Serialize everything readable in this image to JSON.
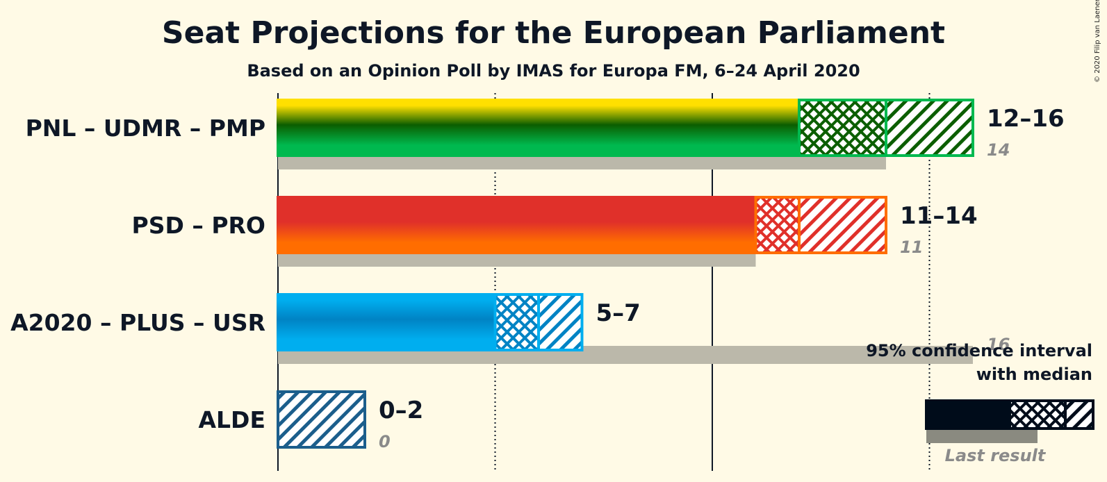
{
  "title": "Seat Projections for the European Parliament",
  "subtitle": "Based on an Opinion Poll by IMAS for Europa FM, 6–24 April 2020",
  "copyright": "© 2020 Filip van Laenen",
  "legend": {
    "line1": "95% confidence interval",
    "line2": "with median",
    "last_result": "Last result"
  },
  "chart_data": {
    "type": "bar",
    "orientation": "horizontal",
    "title": "Seat Projections for the European Parliament",
    "subtitle": "Based on an Opinion Poll by IMAS for Europa FM, 6–24 April 2020",
    "xlim": [
      0,
      16
    ],
    "gridlines": [
      5,
      10,
      15
    ],
    "parties": [
      {
        "name": "PNL – UDMR – PMP",
        "low": 12,
        "median": 14,
        "high": 16,
        "last": 14,
        "range_label": "12–16",
        "last_label": "14",
        "colors": [
          "#ffe000",
          "#0b5e00",
          "#00b94f"
        ]
      },
      {
        "name": "PSD – PRO",
        "low": 11,
        "median": 12,
        "high": 14,
        "last": 11,
        "range_label": "11–14",
        "last_label": "11",
        "colors": [
          "#e0302a",
          "#e0302a",
          "#ff6d00"
        ]
      },
      {
        "name": "A2020 – PLUS – USR",
        "low": 5,
        "median": 6,
        "high": 7,
        "last": 16,
        "range_label": "5–7",
        "last_label": "16",
        "colors": [
          "#00aeef",
          "#0083c4",
          "#00aeef"
        ]
      },
      {
        "name": "ALDE",
        "low": 0,
        "median": 0,
        "high": 2,
        "last": 0,
        "range_label": "0–2",
        "last_label": "0",
        "colors": [
          "#1b5e8c",
          "#1b5e8c",
          "#1b5e8c"
        ]
      }
    ]
  }
}
